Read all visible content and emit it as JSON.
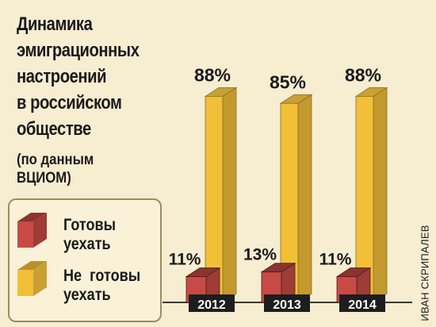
{
  "title": [
    "Динамика",
    "эмиграционных",
    "настроений",
    "в российском",
    "обществе"
  ],
  "subtitle": [
    "(по данным",
    "ВЦИОМ)"
  ],
  "legend": {
    "ready": [
      "Готовы",
      "уехать"
    ],
    "not_ready": [
      "Не  готовы",
      "уехать"
    ]
  },
  "credit": "ИВАН СКРИПАЛЕВ",
  "colors": {
    "ready": "#c74a45",
    "not_ready": "#f1c038",
    "background": "#f7edd1"
  },
  "chart_data": {
    "type": "bar",
    "categories": [
      "2012",
      "2013",
      "2014"
    ],
    "series": [
      {
        "name": "Готовы уехать",
        "values": [
          11,
          13,
          11
        ],
        "labels": [
          "11%",
          "13%",
          "11%"
        ]
      },
      {
        "name": "Не готовы уехать",
        "values": [
          88,
          85,
          88
        ],
        "labels": [
          "88%",
          "85%",
          "88%"
        ]
      }
    ],
    "ylim": [
      0,
      100
    ]
  }
}
